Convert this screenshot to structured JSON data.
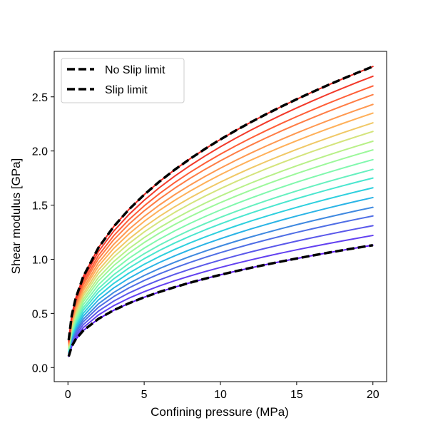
{
  "chart_data": {
    "type": "line",
    "title": "",
    "xlabel": "Confining pressure (MPa)",
    "ylabel": "Shear modulus [GPa]",
    "xlim": [
      -0.9,
      20.9
    ],
    "ylim": [
      -0.13,
      2.92
    ],
    "xticks": [
      0,
      5,
      10,
      15,
      20
    ],
    "xtick_labels": [
      "0",
      "5",
      "10",
      "15",
      "20"
    ],
    "yticks": [
      0.0,
      0.5,
      1.0,
      1.5,
      2.0,
      2.5
    ],
    "ytick_labels": [
      "0.0",
      "0.5",
      "1.0",
      "1.5",
      "2.0",
      "2.5"
    ],
    "grid": false,
    "legend": {
      "position": "top-left",
      "entries": [
        {
          "label": "No Slip limit",
          "color": "#000000",
          "style": "dashed"
        },
        {
          "label": "Slip limit",
          "color": "#000000",
          "style": "dashed"
        }
      ]
    },
    "model": "G = G20 * (P/20)^0.4",
    "x": [
      0.05,
      0.25,
      0.5,
      1,
      2,
      3,
      4,
      5,
      6,
      7,
      8,
      9,
      10,
      11,
      12,
      13,
      14,
      15,
      16,
      17,
      18,
      19,
      20
    ],
    "colored_series": [
      {
        "g20": 1.13,
        "color": "#5b16f0"
      },
      {
        "g20": 1.22,
        "color": "#6240f0"
      },
      {
        "g20": 1.31,
        "color": "#5a58ea"
      },
      {
        "g20": 1.4,
        "color": "#4f6ee5"
      },
      {
        "g20": 1.48,
        "color": "#3f89e0"
      },
      {
        "g20": 1.57,
        "color": "#2ab4e6"
      },
      {
        "g20": 1.66,
        "color": "#2ed0de"
      },
      {
        "g20": 1.75,
        "color": "#4ae6cf"
      },
      {
        "g20": 1.83,
        "color": "#66f0bf"
      },
      {
        "g20": 1.92,
        "color": "#80f8ad"
      },
      {
        "g20": 2.01,
        "color": "#9cf89b"
      },
      {
        "g20": 2.09,
        "color": "#b8f088"
      },
      {
        "g20": 2.18,
        "color": "#d4e47c"
      },
      {
        "g20": 2.26,
        "color": "#f0c866"
      },
      {
        "g20": 2.35,
        "color": "#ffb059"
      },
      {
        "g20": 2.43,
        "color": "#ff9850"
      },
      {
        "g20": 2.52,
        "color": "#ff7d45"
      },
      {
        "g20": 2.6,
        "color": "#ff5e37"
      },
      {
        "g20": 2.69,
        "color": "#f2392a"
      },
      {
        "g20": 2.78,
        "color": "#e8231c"
      }
    ],
    "limit_series": [
      {
        "name": "No Slip limit",
        "g20": 2.78,
        "color": "#000000",
        "style": "dashed"
      },
      {
        "name": "Slip limit",
        "g20": 1.13,
        "color": "#000000",
        "style": "dashed"
      }
    ]
  }
}
